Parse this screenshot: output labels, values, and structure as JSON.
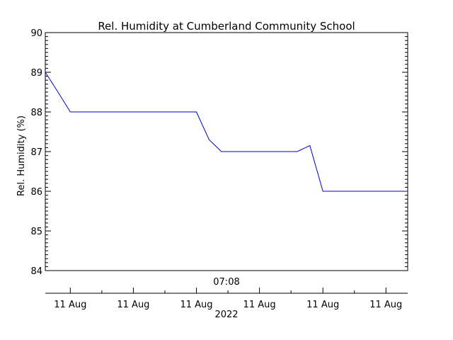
{
  "chart_data": {
    "type": "line",
    "title": "Rel. Humidity at Cumberland Community School",
    "ylabel": "Rel. Humidity (%)",
    "ylim": [
      84,
      90
    ],
    "yticks": [
      84,
      85,
      86,
      87,
      88,
      89,
      90
    ],
    "x_center_label": "07:08",
    "x_tick_labels": [
      "11 Aug",
      "11 Aug",
      "11 Aug",
      "11 Aug",
      "11 Aug",
      "11 Aug"
    ],
    "x_year_label": "2022",
    "xlim": [
      0,
      100
    ],
    "xticks": [
      6.9,
      24.3,
      41.7,
      59.1,
      76.6,
      94.0
    ],
    "grid": false,
    "series": [
      {
        "color": "#0000cc",
        "x": [
          0,
          3.5,
          6.9,
          10.4,
          13.9,
          17.4,
          20.8,
          24.3,
          27.8,
          31.3,
          34.7,
          38.2,
          41.7,
          45.2,
          48.6,
          52.1,
          55.6,
          59.1,
          62.5,
          66.0,
          69.5,
          73.0,
          76.6,
          80.0,
          83.5,
          87.0,
          90.5,
          94.0,
          97.4,
          100
        ],
        "values": [
          89,
          88.5,
          88,
          88,
          88,
          88,
          88,
          88,
          88,
          88,
          88,
          88,
          88,
          87.3,
          87,
          87,
          87,
          87,
          87,
          87,
          87,
          87.15,
          86,
          86,
          86,
          86,
          86,
          86,
          86,
          86
        ]
      }
    ]
  }
}
